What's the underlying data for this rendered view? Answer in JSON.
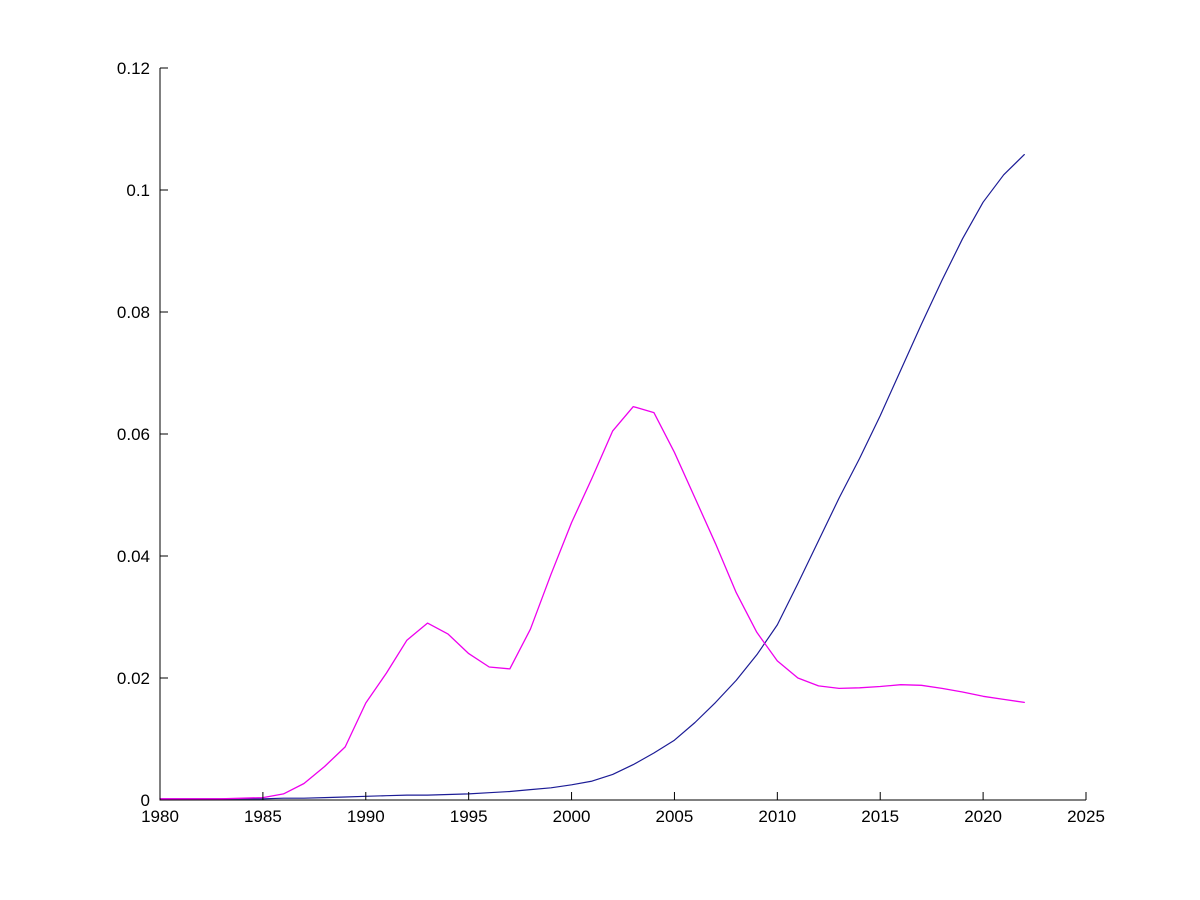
{
  "figure": {
    "background": "#ffffff",
    "axis_color": "#000000",
    "tick_label_fontsize": 17
  },
  "chart_data": {
    "type": "line",
    "title": "",
    "xlabel": "",
    "ylabel": "",
    "xlim": [
      1980,
      2025
    ],
    "ylim": [
      0,
      0.12
    ],
    "grid": false,
    "legend_position": "none",
    "box": "left-bottom-only",
    "tick_direction": "in",
    "xticks": {
      "values": [
        1980,
        1985,
        1990,
        1995,
        2000,
        2005,
        2010,
        2015,
        2020,
        2025
      ],
      "labels": [
        "1980",
        "1985",
        "1990",
        "1995",
        "2000",
        "2005",
        "2010",
        "2015",
        "2020",
        "2025"
      ]
    },
    "yticks": {
      "values": [
        0,
        0.02,
        0.04,
        0.06,
        0.08,
        0.1,
        0.12
      ],
      "labels": [
        "0",
        "0.02",
        "0.04",
        "0.06",
        "0.08",
        "0.1",
        "0.12"
      ]
    },
    "x": [
      1980,
      1981,
      1982,
      1983,
      1984,
      1985,
      1986,
      1987,
      1988,
      1989,
      1990,
      1991,
      1992,
      1993,
      1994,
      1995,
      1996,
      1997,
      1998,
      1999,
      2000,
      2001,
      2002,
      2003,
      2004,
      2005,
      2006,
      2007,
      2008,
      2009,
      2010,
      2011,
      2012,
      2013,
      2014,
      2015,
      2016,
      2017,
      2018,
      2019,
      2020,
      2021,
      2022
    ],
    "series": [
      {
        "name": "dark-blue-line",
        "color": "#1c1c96",
        "width": 1.2,
        "values": [
          0.0002,
          0.0002,
          0.0002,
          0.0002,
          0.0002,
          0.0002,
          0.0003,
          0.0003,
          0.0004,
          0.0005,
          0.0006,
          0.0007,
          0.0008,
          0.0008,
          0.0009,
          0.001,
          0.0012,
          0.0014,
          0.0017,
          0.002,
          0.0025,
          0.0031,
          0.0042,
          0.0058,
          0.0077,
          0.0098,
          0.0127,
          0.016,
          0.0196,
          0.0238,
          0.0287,
          0.0355,
          0.0425,
          0.0495,
          0.056,
          0.063,
          0.0705,
          0.078,
          0.0852,
          0.092,
          0.098,
          0.1025,
          0.1058
        ]
      },
      {
        "name": "magenta-line",
        "color": "#ee00ee",
        "width": 1.3,
        "values": [
          0.0002,
          0.0002,
          0.0002,
          0.0002,
          0.0003,
          0.0004,
          0.001,
          0.0027,
          0.0055,
          0.0087,
          0.0159,
          0.0208,
          0.0262,
          0.029,
          0.0272,
          0.024,
          0.0218,
          0.0215,
          0.028,
          0.037,
          0.0455,
          0.0528,
          0.0605,
          0.0645,
          0.0635,
          0.057,
          0.0495,
          0.042,
          0.034,
          0.0275,
          0.0228,
          0.02,
          0.0187,
          0.0183,
          0.0184,
          0.0186,
          0.0189,
          0.0188,
          0.0183,
          0.0177,
          0.017,
          0.0165,
          0.016
        ]
      }
    ]
  }
}
